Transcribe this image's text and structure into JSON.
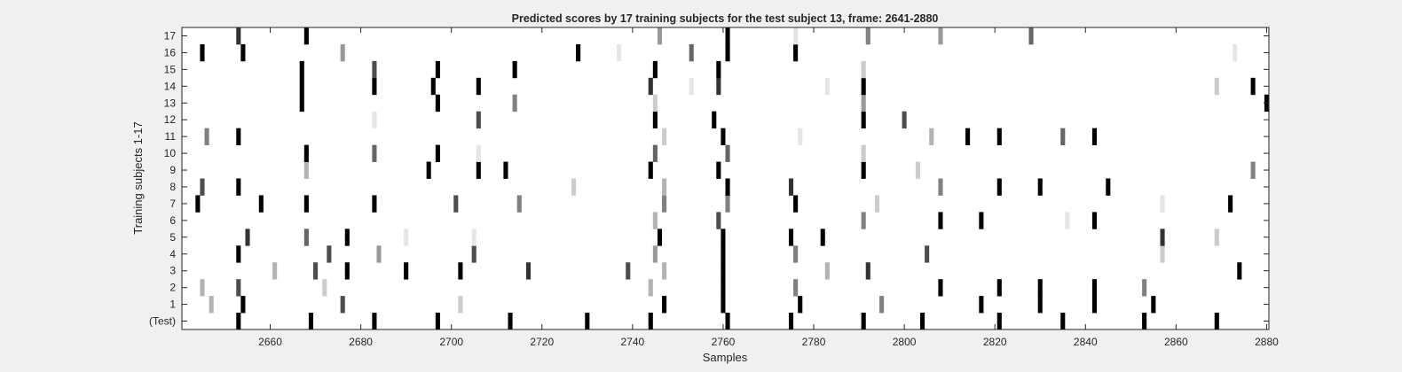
{
  "colors": {
    "figure_background": "#f0f0f0",
    "axes_background": "#ffffff",
    "axis_line": "#262626",
    "text": "#262626"
  },
  "chart_data": {
    "type": "heatmap",
    "colormap": "gray (0 = black, 1 = white)",
    "title": "Predicted scores by 17 training subjects for the test subject 13, frame: 2641-2880",
    "xlabel": "Samples",
    "ylabel": "Training subjects 1-17",
    "xlim": [
      2641,
      2880
    ],
    "x_ticks": [
      2660,
      2680,
      2700,
      2720,
      2740,
      2760,
      2780,
      2800,
      2820,
      2840,
      2860,
      2880
    ],
    "x_tick_labels": [
      "2660",
      "2680",
      "2700",
      "2720",
      "2740",
      "2760",
      "2780",
      "2800",
      "2820",
      "2840",
      "2860",
      "2880"
    ],
    "rows": [
      "(Test)",
      "1",
      "2",
      "3",
      "4",
      "5",
      "6",
      "7",
      "8",
      "9",
      "10",
      "11",
      "12",
      "13",
      "14",
      "15",
      "16",
      "17"
    ],
    "grid": false,
    "series": [
      {
        "row": "(Test)",
        "cells": [
          [
            2653,
            0
          ],
          [
            2669,
            0
          ],
          [
            2683,
            0
          ],
          [
            2697,
            0
          ],
          [
            2713,
            0
          ],
          [
            2730,
            0
          ],
          [
            2744,
            0
          ],
          [
            2761,
            0
          ],
          [
            2775,
            0
          ],
          [
            2791,
            0
          ],
          [
            2804,
            0
          ],
          [
            2821,
            0
          ],
          [
            2835,
            0
          ],
          [
            2853,
            0
          ],
          [
            2869,
            0
          ]
        ]
      },
      {
        "row": "1",
        "cells": [
          [
            2647,
            0.7
          ],
          [
            2654,
            0
          ],
          [
            2676,
            0.3
          ],
          [
            2702,
            0.8
          ],
          [
            2747,
            0
          ],
          [
            2760,
            0
          ],
          [
            2777,
            0
          ],
          [
            2795,
            0.5
          ],
          [
            2817,
            0
          ],
          [
            2830,
            0
          ],
          [
            2842,
            0
          ],
          [
            2855,
            0
          ]
        ]
      },
      {
        "row": "2",
        "cells": [
          [
            2645,
            0.7
          ],
          [
            2653,
            0.3
          ],
          [
            2672,
            0.8
          ],
          [
            2744,
            0.7
          ],
          [
            2760,
            0
          ],
          [
            2776,
            0.5
          ],
          [
            2808,
            0
          ],
          [
            2821,
            0
          ],
          [
            2830,
            0
          ],
          [
            2842,
            0
          ],
          [
            2853,
            0.5
          ]
        ]
      },
      {
        "row": "3",
        "cells": [
          [
            2661,
            0.7
          ],
          [
            2670,
            0.3
          ],
          [
            2677,
            0
          ],
          [
            2690,
            0
          ],
          [
            2702,
            0
          ],
          [
            2717,
            0.2
          ],
          [
            2739,
            0.3
          ],
          [
            2747,
            0.7
          ],
          [
            2760,
            0
          ],
          [
            2783,
            0.7
          ],
          [
            2792,
            0.2
          ],
          [
            2874,
            0
          ]
        ]
      },
      {
        "row": "4",
        "cells": [
          [
            2653,
            0
          ],
          [
            2673,
            0.3
          ],
          [
            2684,
            0.6
          ],
          [
            2705,
            0.3
          ],
          [
            2745,
            0.6
          ],
          [
            2760,
            0
          ],
          [
            2776,
            0.5
          ],
          [
            2805,
            0.3
          ],
          [
            2857,
            0.8
          ]
        ]
      },
      {
        "row": "5",
        "cells": [
          [
            2655,
            0.2
          ],
          [
            2668,
            0.4
          ],
          [
            2677,
            0
          ],
          [
            2690,
            0.9
          ],
          [
            2705,
            0.9
          ],
          [
            2746,
            0
          ],
          [
            2760,
            0
          ],
          [
            2775,
            0
          ],
          [
            2782,
            0
          ],
          [
            2857,
            0.2
          ],
          [
            2869,
            0.8
          ]
        ]
      },
      {
        "row": "6",
        "cells": [
          [
            2745,
            0.7
          ],
          [
            2759,
            0.3
          ],
          [
            2791,
            0.5
          ],
          [
            2808,
            0
          ],
          [
            2817,
            0
          ],
          [
            2836,
            0.9
          ],
          [
            2842,
            0
          ]
        ]
      },
      {
        "row": "7",
        "cells": [
          [
            2644,
            0
          ],
          [
            2658,
            0
          ],
          [
            2668,
            0
          ],
          [
            2683,
            0
          ],
          [
            2701,
            0.3
          ],
          [
            2715,
            0.5
          ],
          [
            2747,
            0.5
          ],
          [
            2761,
            0.5
          ],
          [
            2776,
            0
          ],
          [
            2794,
            0.8
          ],
          [
            2857,
            0.9
          ],
          [
            2872,
            0
          ]
        ]
      },
      {
        "row": "8",
        "cells": [
          [
            2645,
            0.3
          ],
          [
            2653,
            0
          ],
          [
            2727,
            0.8
          ],
          [
            2747,
            0.7
          ],
          [
            2761,
            0
          ],
          [
            2775,
            0.2
          ],
          [
            2808,
            0.5
          ],
          [
            2821,
            0
          ],
          [
            2830,
            0
          ],
          [
            2845,
            0
          ]
        ]
      },
      {
        "row": "9",
        "cells": [
          [
            2668,
            0.7
          ],
          [
            2695,
            0
          ],
          [
            2706,
            0
          ],
          [
            2712,
            0
          ],
          [
            2744,
            0
          ],
          [
            2759,
            0
          ],
          [
            2791,
            0
          ],
          [
            2803,
            0.8
          ],
          [
            2877,
            0.5
          ]
        ]
      },
      {
        "row": "10",
        "cells": [
          [
            2668,
            0
          ],
          [
            2683,
            0.4
          ],
          [
            2697,
            0
          ],
          [
            2706,
            0.9
          ],
          [
            2745,
            0.4
          ],
          [
            2761,
            0.4
          ],
          [
            2791,
            0.8
          ]
        ]
      },
      {
        "row": "11",
        "cells": [
          [
            2646,
            0.5
          ],
          [
            2653,
            0
          ],
          [
            2747,
            0.8
          ],
          [
            2760,
            0
          ],
          [
            2777,
            0.9
          ],
          [
            2806,
            0.7
          ],
          [
            2814,
            0
          ],
          [
            2821,
            0
          ],
          [
            2835,
            0.4
          ],
          [
            2842,
            0
          ]
        ]
      },
      {
        "row": "12",
        "cells": [
          [
            2683,
            0.9
          ],
          [
            2706,
            0.3
          ],
          [
            2745,
            0
          ],
          [
            2758,
            0
          ],
          [
            2791,
            0
          ],
          [
            2800,
            0.3
          ]
        ]
      },
      {
        "row": "13",
        "cells": [
          [
            2667,
            0
          ],
          [
            2697,
            0
          ],
          [
            2714,
            0.5
          ],
          [
            2745,
            0.8
          ],
          [
            2791,
            0.6
          ],
          [
            2880,
            0
          ]
        ]
      },
      {
        "row": "14",
        "cells": [
          [
            2667,
            0
          ],
          [
            2683,
            0
          ],
          [
            2696,
            0
          ],
          [
            2706,
            0
          ],
          [
            2744,
            0.2
          ],
          [
            2753,
            0.9
          ],
          [
            2759,
            0.2
          ],
          [
            2783,
            0.9
          ],
          [
            2791,
            0
          ],
          [
            2869,
            0.8
          ],
          [
            2877,
            0
          ]
        ]
      },
      {
        "row": "15",
        "cells": [
          [
            2667,
            0
          ],
          [
            2683,
            0.3
          ],
          [
            2697,
            0
          ],
          [
            2714,
            0
          ],
          [
            2745,
            0
          ],
          [
            2759,
            0
          ],
          [
            2791,
            0.8
          ]
        ]
      },
      {
        "row": "16",
        "cells": [
          [
            2645,
            0
          ],
          [
            2654,
            0
          ],
          [
            2676,
            0.6
          ],
          [
            2728,
            0
          ],
          [
            2737,
            0.9
          ],
          [
            2753,
            0.4
          ],
          [
            2761,
            0
          ],
          [
            2776,
            0
          ],
          [
            2873,
            0.9
          ]
        ]
      },
      {
        "row": "17",
        "cells": [
          [
            2653,
            0.2
          ],
          [
            2668,
            0
          ],
          [
            2746,
            0.6
          ],
          [
            2761,
            0
          ],
          [
            2776,
            0.9
          ],
          [
            2792,
            0.5
          ],
          [
            2808,
            0.6
          ],
          [
            2828,
            0.4
          ]
        ]
      }
    ]
  }
}
